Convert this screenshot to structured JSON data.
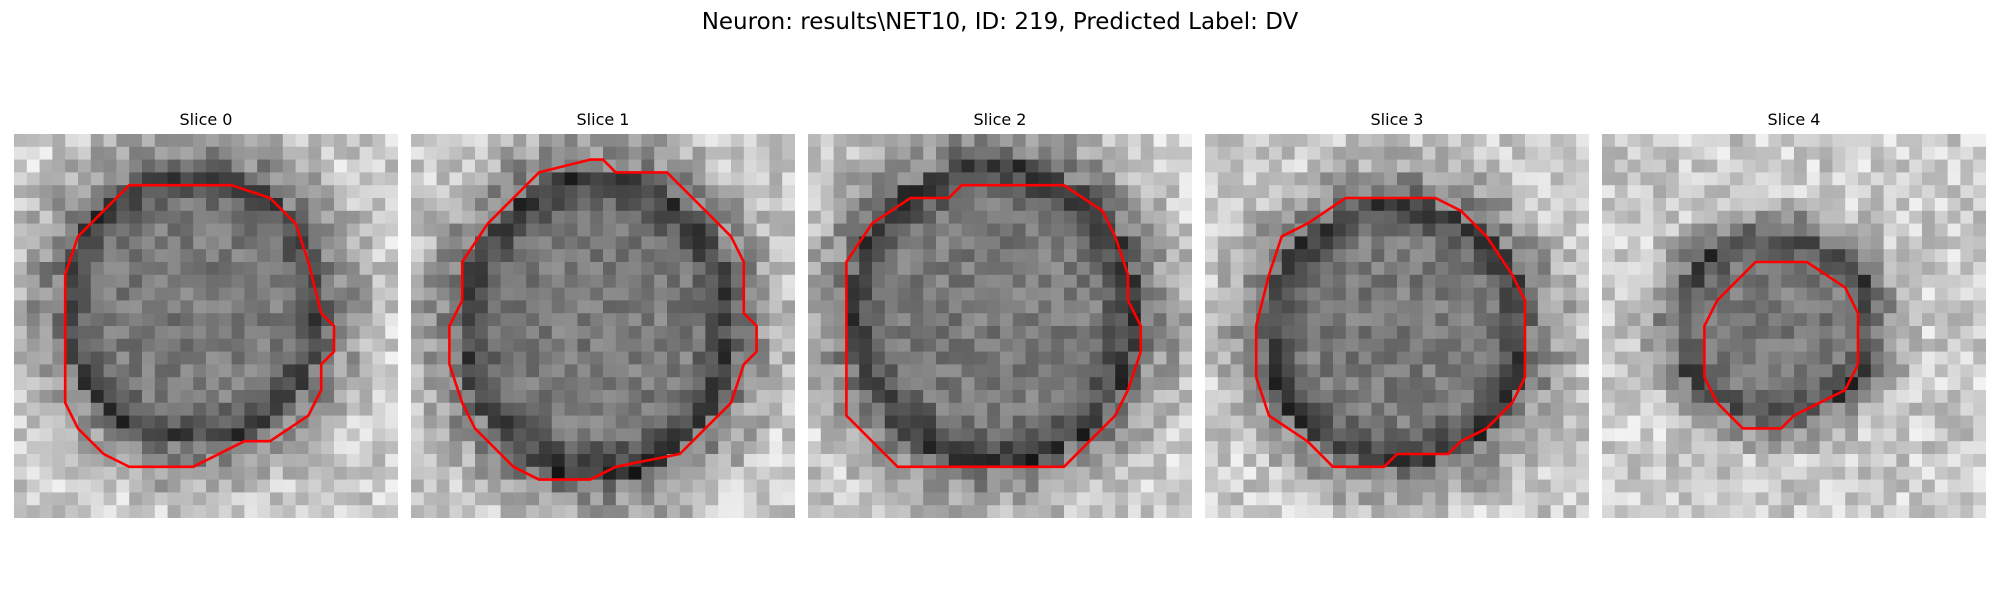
{
  "figure": {
    "title": "Neuron: results\\NET10, ID: 219, Predicted Label: DV"
  },
  "panels": [
    {
      "title": "Slice 0"
    },
    {
      "title": "Slice 1"
    },
    {
      "title": "Slice 2"
    },
    {
      "title": "Slice 3"
    },
    {
      "title": "Slice 4"
    }
  ],
  "colors": {
    "contour": "#ff0000",
    "cmap": "gray"
  }
}
